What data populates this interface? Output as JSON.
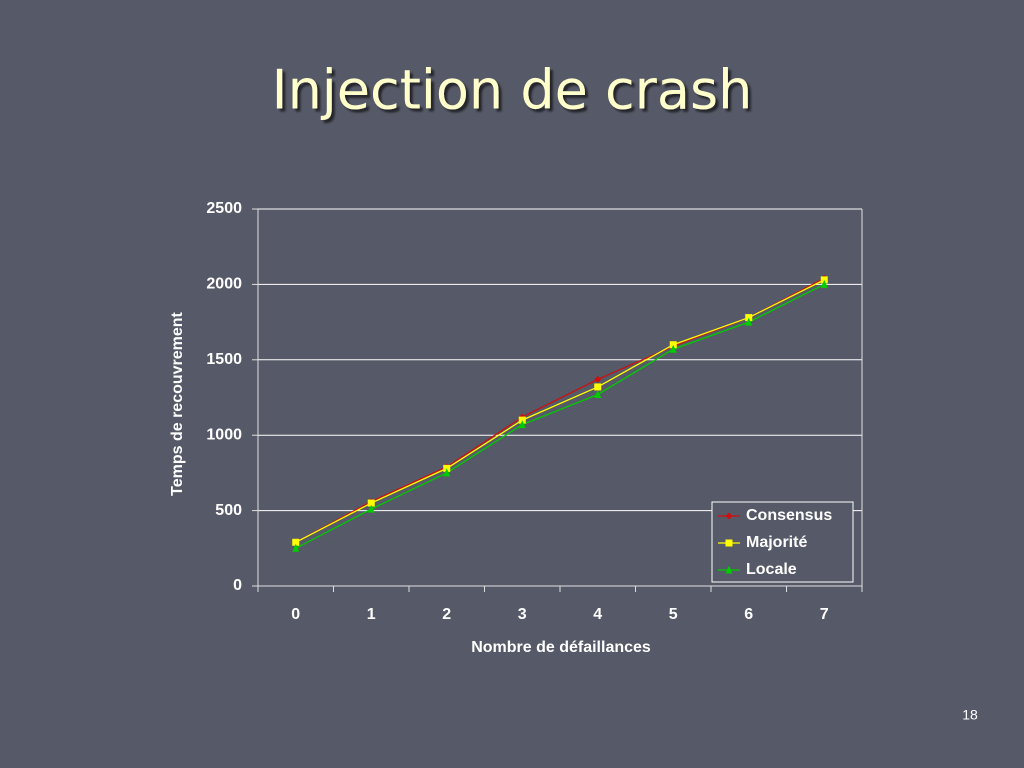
{
  "chart_data": {
    "type": "line",
    "title": "Injection de crash",
    "x_label": "Nombre de défaillances",
    "y_label": "Temps de recouvrement",
    "categories": [
      "0",
      "1",
      "2",
      "3",
      "4",
      "5",
      "6",
      "7"
    ],
    "series": [
      {
        "name": "Consensus",
        "color": "#cc1010",
        "marker": "diamond",
        "values": [
          290,
          560,
          790,
          1120,
          1370,
          1590,
          1780,
          2040
        ]
      },
      {
        "name": "Majorité",
        "color": "#ffff00",
        "marker": "square",
        "values": [
          290,
          550,
          780,
          1100,
          1320,
          1600,
          1780,
          2030
        ]
      },
      {
        "name": "Locale",
        "color": "#00cc00",
        "marker": "triangle",
        "values": [
          250,
          510,
          750,
          1070,
          1270,
          1570,
          1750,
          2000
        ]
      }
    ],
    "ylim": [
      0,
      2500
    ],
    "yticks": [
      0,
      500,
      1000,
      1500,
      2000,
      2500
    ],
    "grid": true,
    "legend": "lower right"
  },
  "page_number": "18"
}
